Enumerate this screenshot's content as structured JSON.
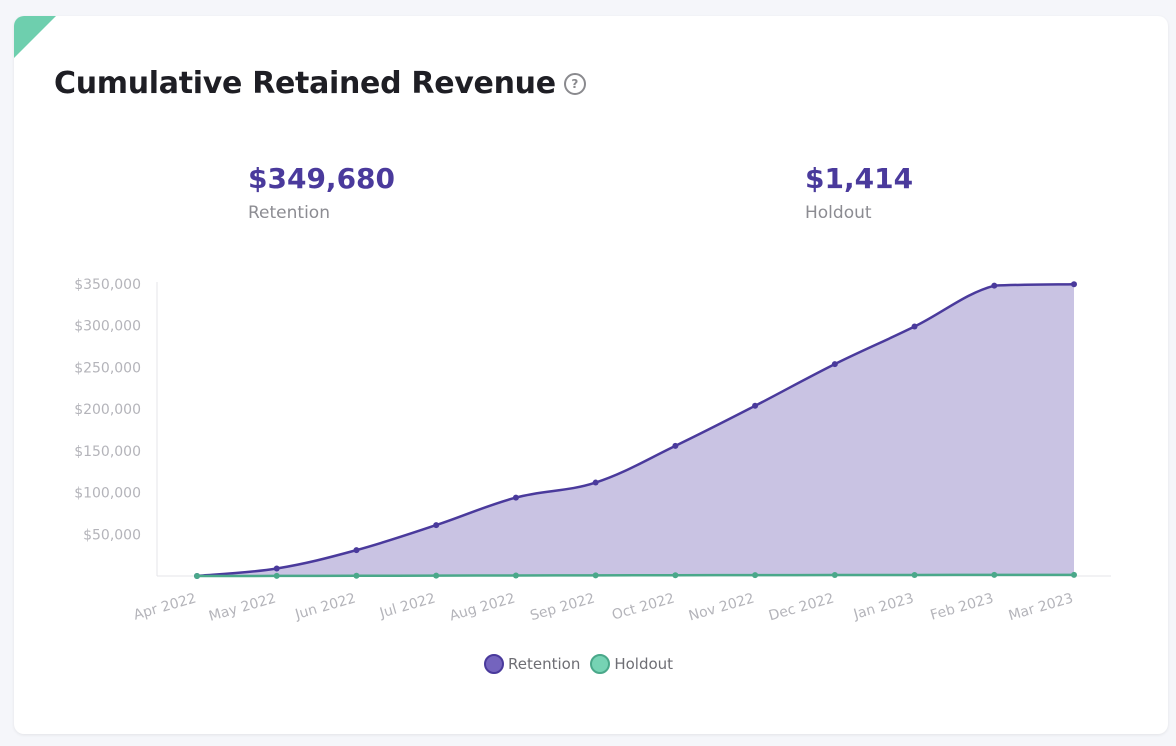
{
  "card": {
    "title": "Cumulative Retained Revenue",
    "help_icon": "question-circle-icon"
  },
  "stats": [
    {
      "value": "$349,680",
      "label": "Retention"
    },
    {
      "value": "$1,414",
      "label": "Holdout"
    }
  ],
  "colors": {
    "accent_purple": "#4a3a9c",
    "retention_line": "#4a3a9c",
    "retention_fill": "#c9c3e3",
    "holdout_line": "#4aa88a",
    "legend_retention": "#7464be",
    "legend_holdout": "#76d3b4",
    "corner": "#6ecfae"
  },
  "chart_data": {
    "type": "area",
    "title": "",
    "xlabel": "",
    "ylabel": "",
    "x": [
      "Apr 2022",
      "May 2022",
      "Jun 2022",
      "Jul 2022",
      "Aug 2022",
      "Sep 2022",
      "Oct 2022",
      "Nov 2022",
      "Dec 2022",
      "Jan 2023",
      "Feb 2023",
      "Mar 2023"
    ],
    "y_ticks": [
      "$50,000",
      "$100,000",
      "$150,000",
      "$200,000",
      "$250,000",
      "$300,000",
      "$350,000"
    ],
    "ylim": [
      0,
      350000
    ],
    "grid": false,
    "legend_position": "bottom",
    "series": [
      {
        "name": "Retention",
        "values": [
          0,
          9000,
          31000,
          61000,
          94000,
          112000,
          156000,
          204000,
          254000,
          299000,
          348000,
          349680
        ]
      },
      {
        "name": "Holdout",
        "values": [
          0,
          100,
          250,
          450,
          600,
          750,
          900,
          1050,
          1150,
          1250,
          1350,
          1414
        ]
      }
    ]
  },
  "legend": [
    {
      "label": "Retention"
    },
    {
      "label": "Holdout"
    }
  ]
}
